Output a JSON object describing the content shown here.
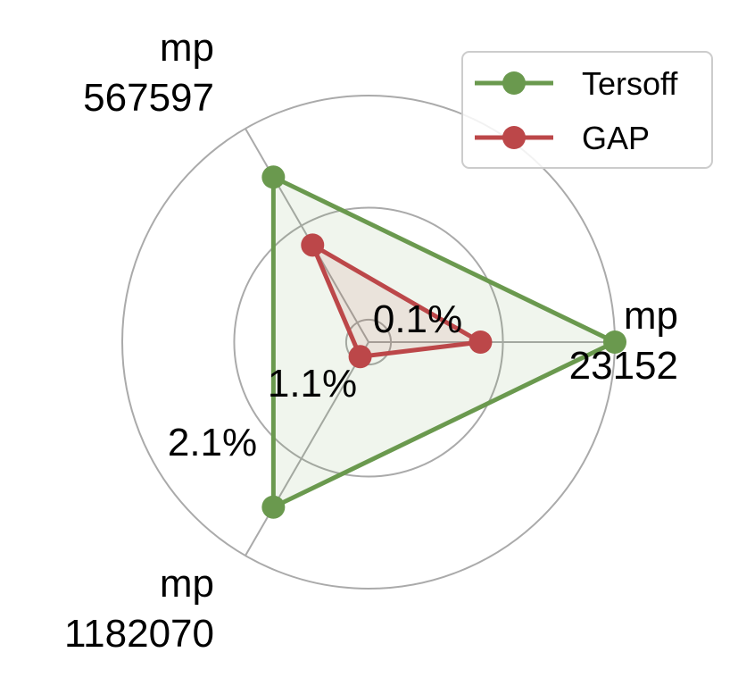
{
  "chart_data": {
    "type": "radar",
    "axes": [
      {
        "line1": "mp",
        "line2": "23152"
      },
      {
        "line1": "mp",
        "line2": "567597"
      },
      {
        "line1": "mp",
        "line2": "1182070"
      }
    ],
    "ring_values": [
      0.1,
      1.1,
      2.1
    ],
    "ring_labels": [
      "0.1%",
      "1.1%",
      "2.1%"
    ],
    "rlim": [
      -0.1,
      2.1
    ],
    "series": [
      {
        "name": "Tersoff",
        "color": "#6a994e",
        "values": [
          2.1,
          1.6,
          1.6
        ]
      },
      {
        "name": "GAP",
        "color": "#bc4749",
        "values": [
          0.9,
          0.9,
          0.05
        ]
      }
    ],
    "legend": {
      "position": "top-right"
    },
    "grid": true
  }
}
